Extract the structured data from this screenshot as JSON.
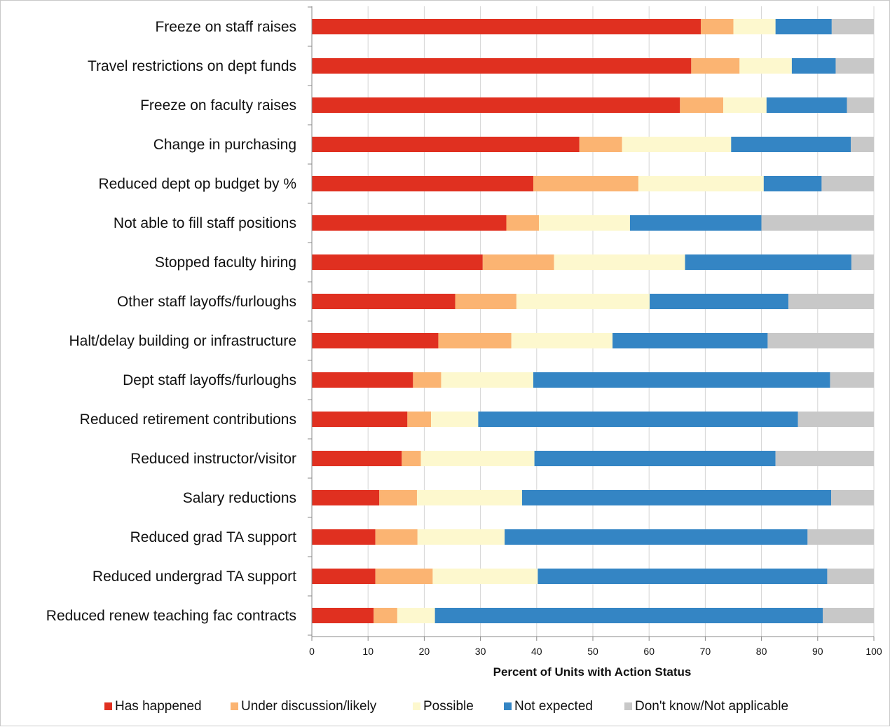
{
  "chart_data": {
    "type": "bar",
    "orientation": "horizontal",
    "stacked": true,
    "title": "",
    "xlabel": "Percent of Units with Action Status",
    "ylabel": "",
    "xlim": [
      0,
      100
    ],
    "xticks": [
      0,
      10,
      20,
      30,
      40,
      50,
      60,
      70,
      80,
      90,
      100
    ],
    "xgrid": true,
    "legend_position": "bottom",
    "categories": [
      "Freeze on staff raises",
      "Travel restrictions on dept funds",
      "Freeze on faculty raises",
      "Change in purchasing",
      "Reduced dept op budget by %",
      "Not able to fill staff positions",
      "Stopped faculty hiring",
      "Other staff layoffs/furloughs",
      "Halt/delay building or infrastructure",
      "Dept staff layoffs/furloughs",
      "Reduced retirement contributions",
      "Reduced instructor/visitor",
      "Salary reductions",
      "Reduced grad TA support",
      "Reduced undergrad TA support",
      "Reduced renew teaching fac contracts"
    ],
    "series": [
      {
        "name": "Has happened",
        "color": "#e03020",
        "values": [
          69.2,
          67.5,
          65.5,
          47.6,
          39.4,
          34.6,
          30.4,
          25.5,
          22.5,
          18.0,
          17.0,
          16.0,
          12.0,
          11.3,
          11.3,
          11.0
        ]
      },
      {
        "name": "Under discussion/likely",
        "color": "#fbb472",
        "values": [
          5.8,
          8.6,
          7.7,
          7.6,
          18.7,
          5.8,
          12.7,
          10.9,
          13.0,
          5.0,
          4.2,
          3.4,
          6.7,
          7.5,
          10.2,
          4.2
        ]
      },
      {
        "name": "Possible",
        "color": "#fdf8ce",
        "values": [
          7.5,
          9.3,
          7.7,
          19.4,
          22.3,
          16.2,
          23.3,
          23.7,
          18.0,
          16.4,
          8.4,
          20.2,
          18.7,
          15.5,
          18.7,
          6.7
        ]
      },
      {
        "name": "Not expected",
        "color": "#3485c4",
        "values": [
          10.0,
          7.8,
          14.3,
          21.3,
          10.3,
          23.4,
          29.6,
          24.7,
          27.6,
          52.8,
          56.9,
          42.9,
          55.0,
          53.9,
          51.5,
          69.0
        ]
      },
      {
        "name": "Don't know/Not applicable",
        "color": "#c8c8c8",
        "values": [
          7.5,
          6.8,
          4.8,
          4.1,
          9.3,
          20.0,
          4.0,
          15.2,
          18.9,
          7.8,
          13.5,
          17.5,
          7.6,
          11.8,
          8.3,
          9.1
        ]
      }
    ]
  }
}
